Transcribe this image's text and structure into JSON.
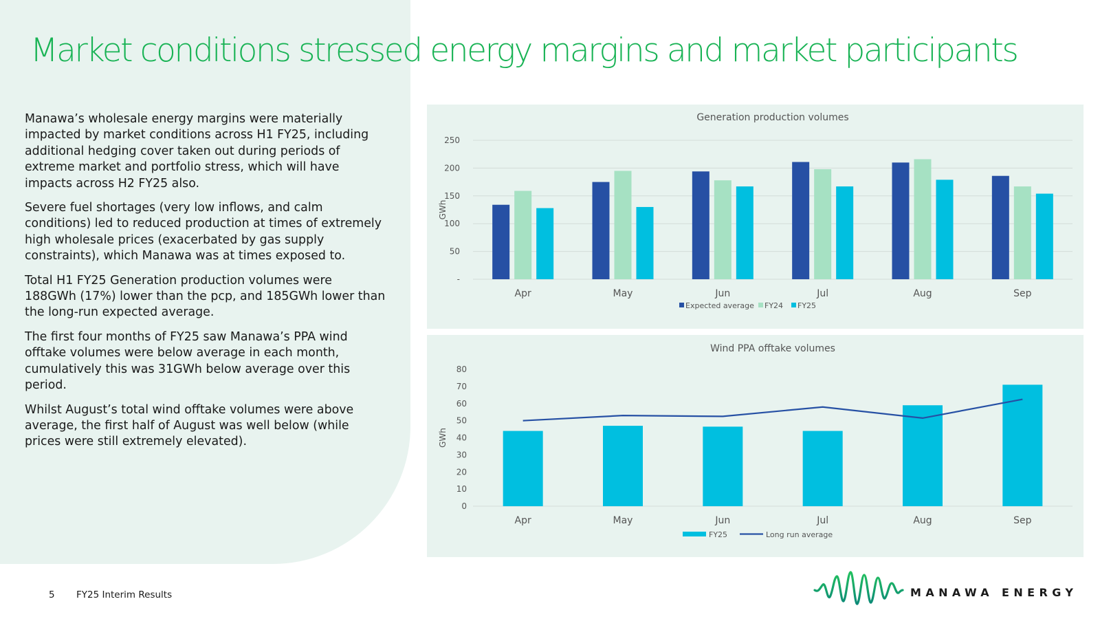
{
  "title": "Market conditions stressed energy margins and market participants",
  "paragraphs": [
    "Manawa’s wholesale energy margins were materially impacted by market conditions across H1 FY25, including additional hedging cover taken out during periods of extreme market and portfolio stress, which will have impacts across H2 FY25 also.",
    "Severe fuel shortages (very low inflows, and calm conditions) led to reduced production at times of extremely high wholesale prices (exacerbated by gas supply constraints), which Manawa was at times exposed to.",
    "Total H1 FY25 Generation production volumes were 188GWh (17%) lower than the pcp, and 185GWh lower than the long-run expected average.",
    "The first four months of FY25 saw Manawa’s PPA wind offtake volumes were below average in each month, cumulatively this was 31GWh below average over this period.",
    "Whilst August’s total wind offtake volumes were above average, the first half of August was well below (while prices were still extremely elevated)."
  ],
  "footer": {
    "page_number": "5",
    "label": "FY25 Interim Results"
  },
  "logo": {
    "text": "MANAWA ENERGY"
  },
  "colors": {
    "title_green": "#19b355",
    "panel_bg": "#e8f3ef",
    "expected": "#2650a4",
    "fy24": "#a6e1c3",
    "fy25": "#00bfe0",
    "long_run": "#2650a4"
  },
  "chart_data": [
    {
      "type": "bar",
      "title": "Generation production volumes",
      "ylabel": "GWh",
      "xlabel": "",
      "categories": [
        "Apr",
        "May",
        "Jun",
        "Jul",
        "Aug",
        "Sep"
      ],
      "yticks": [
        0,
        50,
        100,
        150,
        200,
        250
      ],
      "ytick_labels": [
        "-",
        "50",
        "100",
        "150",
        "200",
        "250"
      ],
      "ylim": [
        0,
        250
      ],
      "grid": true,
      "legend": "bottom",
      "series": [
        {
          "name": "Expected average",
          "color": "#2650a4",
          "values": [
            134,
            175,
            194,
            211,
            210,
            186
          ]
        },
        {
          "name": "FY24",
          "color": "#a6e1c3",
          "values": [
            159,
            195,
            178,
            198,
            216,
            167
          ]
        },
        {
          "name": "FY25",
          "color": "#00bfe0",
          "values": [
            128,
            130,
            167,
            167,
            179,
            154
          ]
        }
      ]
    },
    {
      "type": "bar",
      "title": "Wind PPA offtake volumes",
      "ylabel": "GWh",
      "xlabel": "",
      "categories": [
        "Apr",
        "May",
        "Jun",
        "Jul",
        "Aug",
        "Sep"
      ],
      "yticks": [
        0,
        10,
        20,
        30,
        40,
        50,
        60,
        70,
        80
      ],
      "ytick_labels": [
        "0",
        "10",
        "20",
        "30",
        "40",
        "50",
        "60",
        "70",
        "80"
      ],
      "ylim": [
        0,
        80
      ],
      "grid": false,
      "legend": "bottom",
      "series": [
        {
          "name": "FY25",
          "kind": "bar",
          "color": "#00bfe0",
          "values": [
            44,
            47,
            46.5,
            44,
            59,
            71
          ]
        },
        {
          "name": "Long run average",
          "kind": "line",
          "color": "#2650a4",
          "values": [
            50,
            53,
            52.5,
            58,
            51.5,
            62.5
          ]
        }
      ]
    }
  ]
}
